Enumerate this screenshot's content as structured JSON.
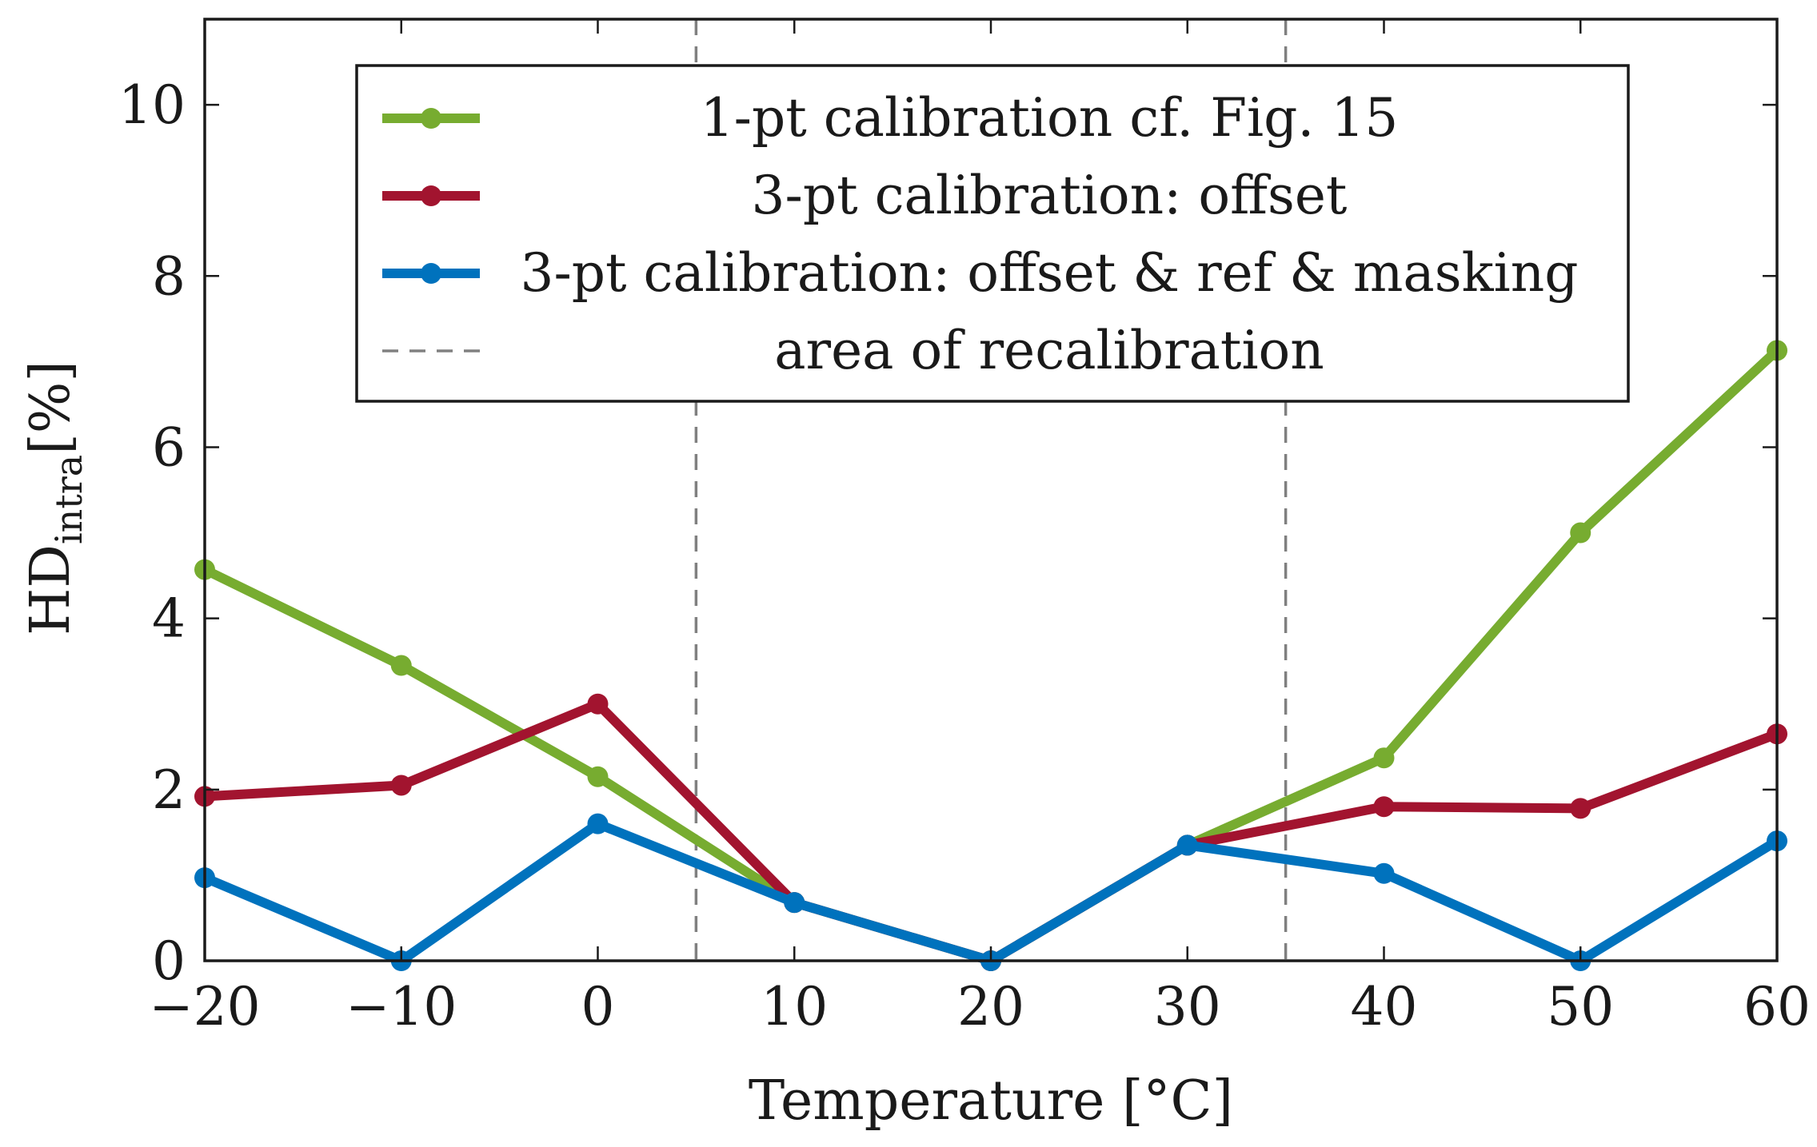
{
  "chart_data": {
    "type": "line",
    "title": "",
    "xlabel": "Temperature [°C]",
    "ylabel_main": "HD",
    "ylabel_sub": "intra",
    "ylabel_unit": "[%]",
    "x": [
      -20,
      -10,
      0,
      10,
      20,
      30,
      40,
      50,
      60
    ],
    "x_tick_labels": [
      "−20",
      "−10",
      "0",
      "10",
      "20",
      "30",
      "40",
      "50",
      "60"
    ],
    "y_ticks": [
      0,
      2,
      4,
      6,
      8,
      10
    ],
    "y_tick_labels": [
      "0",
      "2",
      "4",
      "6",
      "8",
      "10"
    ],
    "xlim": [
      -20,
      60
    ],
    "ylim": [
      0,
      11
    ],
    "grid": false,
    "legend_position": "top-center",
    "series": [
      {
        "name": "1-pt calibration cf. Fig. 15",
        "color": "#77ac30",
        "values": [
          4.57,
          3.45,
          2.15,
          0.68,
          0.0,
          1.35,
          2.37,
          5.0,
          7.13
        ]
      },
      {
        "name": "3-pt calibration: offset",
        "color": "#a2142f",
        "values": [
          1.92,
          2.05,
          3.0,
          0.68,
          0.0,
          1.35,
          1.8,
          1.78,
          2.65
        ]
      },
      {
        "name": "3-pt calibration: offset & ref & masking",
        "color": "#0072bd",
        "values": [
          0.97,
          0.0,
          1.6,
          0.68,
          0.0,
          1.35,
          1.02,
          0.0,
          1.4
        ]
      }
    ],
    "reference_lines": {
      "name": "area of recalibration",
      "color": "#808080",
      "x": [
        5,
        35
      ]
    }
  }
}
